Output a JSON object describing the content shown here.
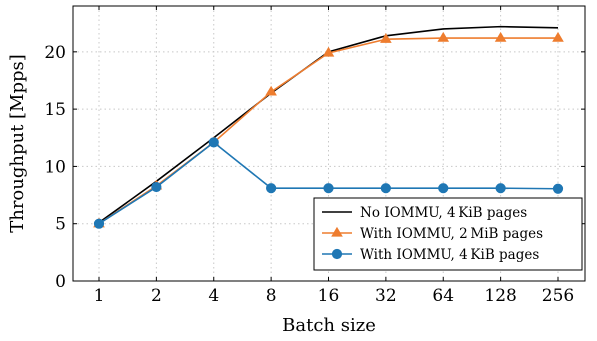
{
  "chart_data": {
    "type": "line",
    "categories": [
      "1",
      "2",
      "4",
      "8",
      "16",
      "32",
      "64",
      "128",
      "256"
    ],
    "xlabel": "Batch size",
    "ylabel": "Throughput [Mpps]",
    "ylim": [
      0,
      24
    ],
    "yticks": [
      0,
      5,
      10,
      15,
      20
    ],
    "grid": true,
    "legend_position": "bottom-right",
    "series": [
      {
        "name": "No IOMMU, 4 KiB pages",
        "color": "#000000",
        "marker": "none",
        "values": [
          5.1,
          8.7,
          12.5,
          16.4,
          20.0,
          21.4,
          22.0,
          22.2,
          22.1
        ]
      },
      {
        "name": "With IOMMU, 2 MiB pages",
        "color": "#ee7d2f",
        "marker": "triangle",
        "values": [
          5.0,
          8.3,
          12.1,
          16.5,
          19.9,
          21.1,
          21.2,
          21.2,
          21.2
        ]
      },
      {
        "name": "With IOMMU, 4 KiB pages",
        "color": "#1f77b4",
        "marker": "circle",
        "values": [
          5.0,
          8.2,
          12.1,
          8.1,
          8.1,
          8.1,
          8.1,
          8.1,
          8.05
        ]
      }
    ]
  }
}
